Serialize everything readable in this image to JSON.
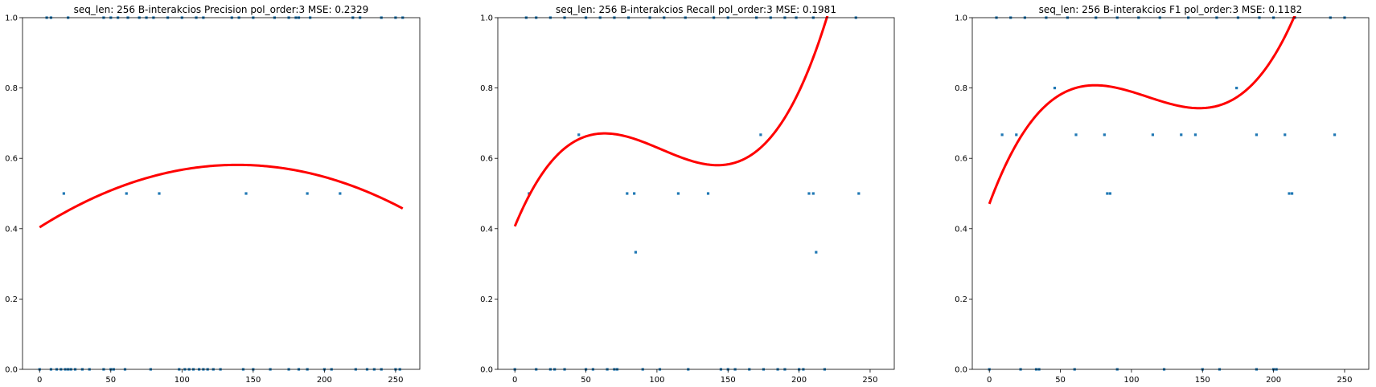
{
  "chart_data": [
    {
      "type": "scatter",
      "title": "seq_len: 256    B-interakcios   Precision   pol_order:3   MSE: 0.2329",
      "xlim": [
        -12,
        267
      ],
      "ylim": [
        0,
        1
      ],
      "xticks": [
        "0",
        "50",
        "100",
        "150",
        "200",
        "250"
      ],
      "yticks": [
        "0.0",
        "0.2",
        "0.4",
        "0.6",
        "0.8",
        "1.0"
      ],
      "grid": false,
      "points": {
        "color": "#1f77b4",
        "x": [
          0,
          8,
          12,
          15,
          18,
          20,
          22,
          25,
          30,
          35,
          45,
          50,
          52,
          60,
          78,
          98,
          102,
          105,
          108,
          112,
          115,
          118,
          122,
          127,
          143,
          150,
          162,
          175,
          182,
          188,
          200,
          205,
          222,
          230,
          235,
          240,
          250,
          253,
          17,
          61,
          84,
          145,
          188,
          211,
          5,
          8,
          20,
          45,
          50,
          55,
          62,
          70,
          75,
          80,
          90,
          100,
          110,
          115,
          135,
          140,
          150,
          165,
          175,
          180,
          182,
          190,
          220,
          225,
          240,
          250,
          255
        ],
        "y": [
          0,
          0,
          0,
          0,
          0,
          0,
          0,
          0,
          0,
          0,
          0,
          0,
          0,
          0,
          0,
          0,
          0,
          0,
          0,
          0,
          0,
          0,
          0,
          0,
          0,
          0,
          0,
          0,
          0,
          0,
          0,
          0,
          0,
          0,
          0,
          0,
          0,
          0,
          0.5,
          0.5,
          0.5,
          0.5,
          0.5,
          0.5,
          1,
          1,
          1,
          1,
          1,
          1,
          1,
          1,
          1,
          1,
          1,
          1,
          1,
          1,
          1,
          1,
          1,
          1,
          1,
          1,
          1,
          1,
          1,
          1,
          1,
          1,
          1
        ]
      },
      "fit": {
        "color": "#ff0000",
        "x_range": [
          0,
          255
        ],
        "coefficients": [
          0.4039,
          0.002556,
          -9.2e-06,
          0
        ]
      }
    },
    {
      "type": "scatter",
      "title": "seq_len: 256    B-interakcios   Recall   pol_order:3   MSE: 0.1981",
      "xlim": [
        -12,
        267
      ],
      "ylim": [
        0,
        1
      ],
      "xticks": [
        "0",
        "50",
        "100",
        "150",
        "200",
        "250"
      ],
      "yticks": [
        "0.0",
        "0.2",
        "0.4",
        "0.6",
        "0.8",
        "1.0"
      ],
      "grid": false,
      "points": {
        "color": "#1f77b4",
        "x": [
          0,
          15,
          25,
          28,
          35,
          50,
          55,
          65,
          70,
          72,
          90,
          102,
          122,
          145,
          150,
          155,
          165,
          175,
          185,
          190,
          200,
          203,
          218,
          10,
          79,
          84,
          115,
          136,
          207,
          210,
          242,
          85,
          212,
          45,
          173,
          8,
          15,
          25,
          35,
          50,
          60,
          70,
          80,
          95,
          105,
          120,
          140,
          150,
          170,
          180,
          190,
          198,
          210,
          240
        ],
        "y": [
          0,
          0,
          0,
          0,
          0,
          0,
          0,
          0,
          0,
          0,
          0,
          0,
          0,
          0,
          0,
          0,
          0,
          0,
          0,
          0,
          0,
          0,
          0,
          0.5,
          0.5,
          0.5,
          0.5,
          0.5,
          0.5,
          0.5,
          0.5,
          0.333,
          0.333,
          0.667,
          0.667,
          1,
          1,
          1,
          1,
          1,
          1,
          1,
          1,
          1,
          1,
          1,
          1,
          1,
          1,
          1,
          1,
          1,
          1,
          1
        ]
      },
      "fit": {
        "color": "#ff0000",
        "x_range": [
          0,
          250
        ],
        "coefficients": [
          0.4067,
          0.0098,
          -0.0001118,
          3.62e-07
        ]
      }
    },
    {
      "type": "scatter",
      "title": "seq_len: 256    B-interakcios   F1   pol_order:3   MSE: 0.1182",
      "xlim": [
        -12,
        267
      ],
      "ylim": [
        0,
        1
      ],
      "xticks": [
        "0",
        "50",
        "100",
        "150",
        "200",
        "250"
      ],
      "yticks": [
        "0.0",
        "0.2",
        "0.4",
        "0.6",
        "0.8",
        "1.0"
      ],
      "grid": false,
      "points": {
        "color": "#1f77b4",
        "x": [
          0,
          22,
          33,
          35,
          60,
          90,
          123,
          150,
          162,
          188,
          200,
          202,
          9,
          19,
          61,
          81,
          115,
          135,
          145,
          188,
          208,
          243,
          83,
          85,
          211,
          213,
          46,
          174,
          5,
          15,
          25,
          40,
          55,
          75,
          90,
          105,
          120,
          140,
          160,
          175,
          190,
          200,
          215,
          240,
          250
        ],
        "y": [
          0,
          0,
          0,
          0,
          0,
          0,
          0,
          0,
          0,
          0,
          0,
          0,
          0.667,
          0.667,
          0.667,
          0.667,
          0.667,
          0.667,
          0.667,
          0.667,
          0.667,
          0.667,
          0.5,
          0.5,
          0.5,
          0.5,
          0.8,
          0.8,
          1,
          1,
          1,
          1,
          1,
          1,
          1,
          1,
          1,
          1,
          1,
          1,
          1,
          1,
          1,
          1,
          1
        ]
      },
      "fit": {
        "color": "#ff0000",
        "x_range": [
          0,
          250
        ],
        "coefficients": [
          0.4705,
          0.01089,
          -0.00011,
          3.3e-07
        ]
      }
    }
  ]
}
